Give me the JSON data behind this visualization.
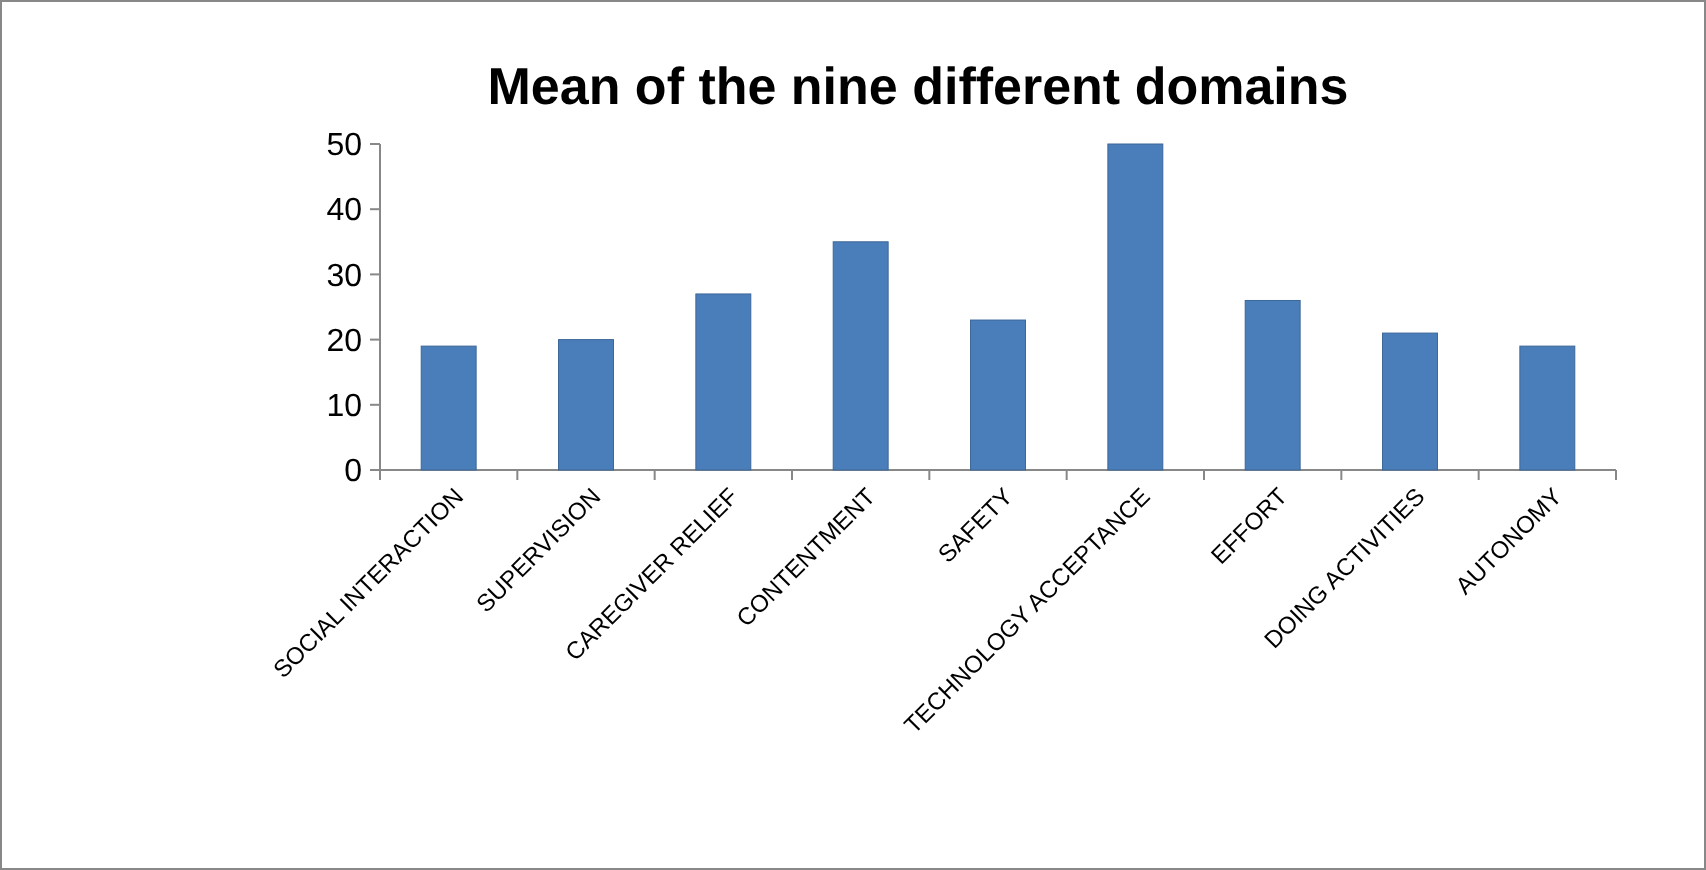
{
  "chart_data": {
    "type": "bar",
    "title": "Mean of the nine different domains",
    "categories": [
      "SOCIAL INTERACTION",
      "SUPERVISION",
      "CAREGIVER RELIEF",
      "CONTENTMENT",
      "SAFETY",
      "TECHNOLOGY ACCEPTANCE",
      "EFFORT",
      "DOING ACTIVITIES",
      "AUTONOMY"
    ],
    "values": [
      19,
      20,
      27,
      35,
      23,
      50,
      26,
      21,
      19
    ],
    "color": "#4a7ebb",
    "ylim": [
      0,
      50
    ],
    "yticks": [
      0,
      10,
      20,
      30,
      40,
      50
    ],
    "grid": false
  }
}
